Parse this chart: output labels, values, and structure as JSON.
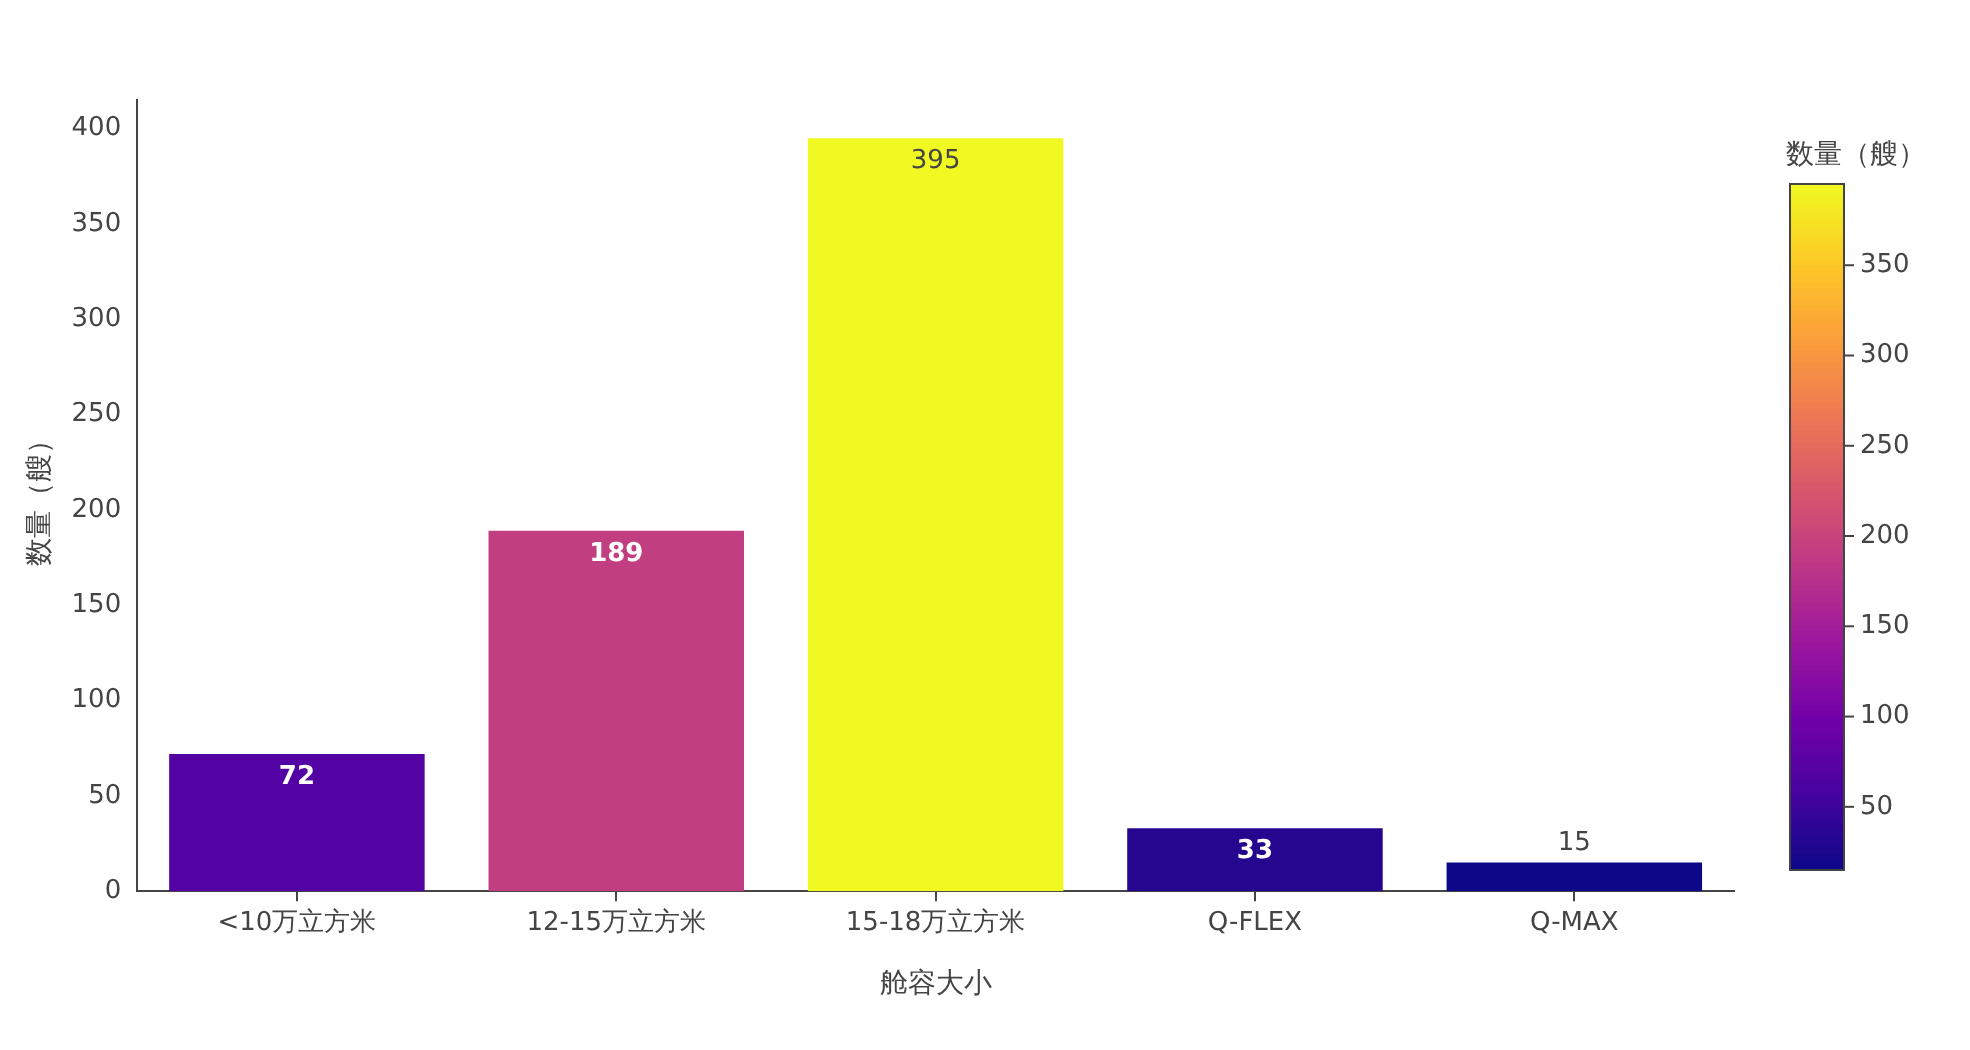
{
  "chart_data": {
    "type": "bar",
    "xlabel": "舱容大小",
    "ylabel": "数量（艘）",
    "clabel": "数量（艘）",
    "categories": [
      "<10万立方米",
      "12-15万立方米",
      "15-18万立方米",
      "Q-FLEX",
      "Q-MAX"
    ],
    "values": [
      72,
      189,
      395,
      33,
      15
    ],
    "colors": [
      "#5302a3",
      "#c13f81",
      "#f0f921",
      "#24068f",
      "#0d0887"
    ],
    "ylim": [
      0,
      415
    ],
    "yticks": [
      0,
      50,
      100,
      150,
      200,
      250,
      300,
      350,
      400
    ],
    "clim": [
      15,
      395
    ],
    "cticks": [
      50,
      100,
      150,
      200,
      250,
      300,
      350
    ],
    "data_labels": true,
    "grid": false,
    "legend": false
  }
}
